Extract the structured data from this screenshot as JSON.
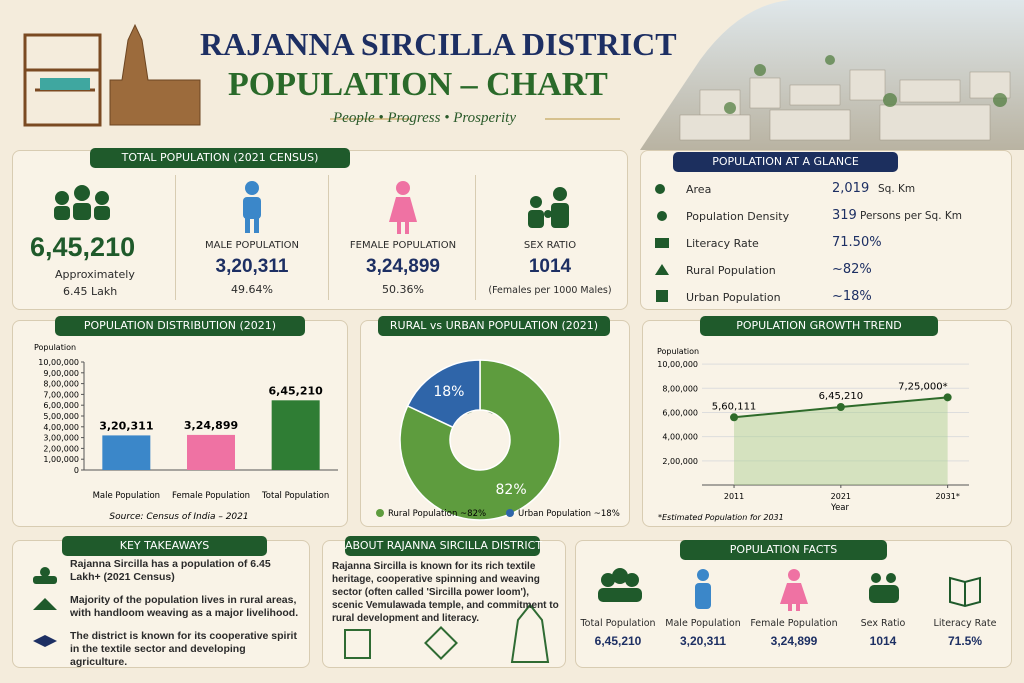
{
  "header": {
    "title": "RAJANNA SIRCILLA DISTRICT",
    "subtitle": "POPULATION – CHART",
    "tagline": "People • Progress • Prosperity"
  },
  "total_population": {
    "title": "TOTAL POPULATION (2021 CENSUS)",
    "total": {
      "value": "6,45,210",
      "note": "Approximately",
      "note2": "6.45 Lakh"
    },
    "male": {
      "label": "MALE POPULATION",
      "value": "3,20,311",
      "share": "49.64%"
    },
    "female": {
      "label": "FEMALE POPULATION",
      "value": "3,24,899",
      "share": "50.36%"
    },
    "sex_ratio": {
      "label": "SEX RATIO",
      "value": "1014",
      "note": "(Females per 1000 Males)"
    }
  },
  "glance": {
    "title": "POPULATION AT A GLANCE",
    "rows": [
      [
        "Area",
        "2,019",
        "Sq. Km"
      ],
      [
        "Population Density",
        "319",
        "Persons per Sq. Km"
      ],
      [
        "Literacy Rate",
        "71.50%"
      ],
      [
        "Rural Population",
        "~82%"
      ],
      [
        "Urban Population",
        "~18%"
      ]
    ]
  },
  "chart_data": [
    {
      "type": "bar",
      "title": "POPULATION DISTRIBUTION (2021)",
      "y_label": "Population",
      "categories": [
        "Male Population",
        "Female Population",
        "Total Population"
      ],
      "values": [
        320311,
        324899,
        645210
      ],
      "value_labels": [
        "3,20,311",
        "3,24,899",
        "6,45,210"
      ],
      "colors": [
        "#3b87c9",
        "#ef72a3",
        "#2f7d34"
      ],
      "ylim": [
        0,
        1000000
      ],
      "yticks": [
        0,
        {
          "value": 100000,
          "label": "1,00,000"
        },
        {
          "value": 200000,
          "label": "2,00,000"
        },
        {
          "value": 300000,
          "label": "3,00,000"
        },
        {
          "value": 400000,
          "label": "4,00,000"
        },
        {
          "value": 500000,
          "label": "5,00,000"
        },
        {
          "value": 600000,
          "label": "6,00,000"
        },
        {
          "value": 700000,
          "label": "7,00,000"
        },
        {
          "value": 800000,
          "label": "8,00,000"
        },
        {
          "value": 900000,
          "label": "9,00,000"
        },
        {
          "value": 1000000,
          "label": "10,00,000"
        }
      ],
      "source": "Source: Census of India – 2021"
    },
    {
      "type": "pie",
      "title": "RURAL vs URBAN POPULATION (2021)",
      "categories": [
        "Rural Population ~82%",
        "Urban Population ~18%"
      ],
      "values": [
        82,
        18
      ],
      "value_labels": [
        "82%",
        "18%"
      ],
      "colors": [
        "#5e9c3e",
        "#2f65a9"
      ]
    },
    {
      "type": "line",
      "title": "POPULATION GROWTH TREND",
      "y_label": "Population",
      "x_label": "Year",
      "x": [
        2011,
        2021,
        2031
      ],
      "values": [
        560111,
        645210,
        725000
      ],
      "value_labels": [
        "5,60,111",
        "6,45,210",
        "7,25,000*"
      ],
      "color": "#2e6b2a",
      "xlim": [
        2008,
        2033
      ],
      "xticks": [
        2011,
        2021,
        {
          "value": 2031,
          "label": "2031*"
        }
      ],
      "ylim": [
        0,
        1100000
      ],
      "yticks": [
        {
          "value": 200000,
          "label": "2,00,000"
        },
        {
          "value": 400000,
          "label": "4,00,000"
        },
        {
          "value": 600000,
          "label": "6,00,000"
        },
        {
          "value": 800000,
          "label": "8,00,000"
        },
        {
          "value": 1000000,
          "label": "10,00,000"
        }
      ],
      "grid": true,
      "note": "*Estimated Population for 2031"
    }
  ],
  "takeaways": {
    "title": "KEY TAKEAWAYS",
    "items": [
      "Rajanna Sircilla has a population of 6.45 Lakh+ (2021 Census)",
      "Majority of the population lives in rural areas, with handloom weaving as a major livelihood.",
      "The district is known for its cooperative spirit in the textile sector and developing agriculture."
    ]
  },
  "about": {
    "title": "ABOUT RAJANNA SIRCILLA DISTRICT",
    "text": "Rajanna Sircilla is known for its rich textile heritage, cooperative spinning and weaving sector (often called 'Sircilla power loom'), scenic Vemulawada temple, and commitment to rural development and literacy."
  },
  "facts": {
    "title": "POPULATION FACTS",
    "items": [
      [
        "Total Population",
        "6,45,210"
      ],
      [
        "Male Population",
        "3,20,311"
      ],
      [
        "Female Population",
        "3,24,899"
      ],
      [
        "Sex Ratio",
        "1014"
      ],
      [
        "Literacy Rate",
        "71.5%"
      ]
    ]
  }
}
